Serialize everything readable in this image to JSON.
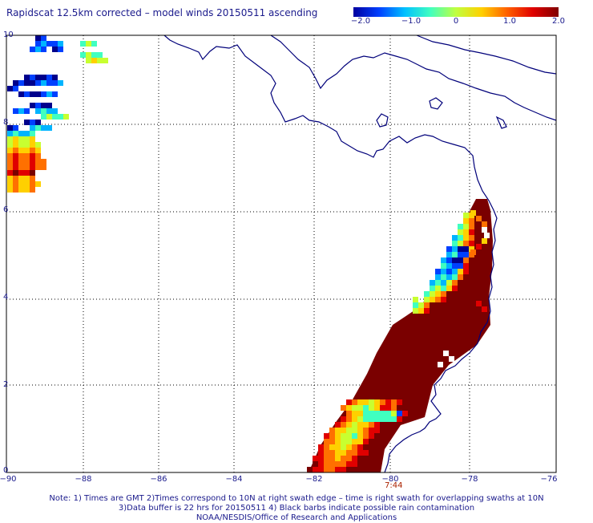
{
  "title": "Rapidscat 12.5km corrected – model winds 20150511 ascending",
  "colorbar": {
    "tick_labels": [
      "−2.0",
      "−1.0",
      "0",
      "1.0",
      "2.0"
    ],
    "colors": [
      "#0000a0",
      "#0040ff",
      "#00c0ff",
      "#40ffc0",
      "#c0ff40",
      "#ffd000",
      "#ff6000",
      "#e00000",
      "#800000"
    ]
  },
  "axes": {
    "lon_labels": [
      "−90",
      "−88",
      "−86",
      "−84",
      "−82",
      "−80",
      "−78",
      "−76"
    ],
    "lat_labels": [
      "10",
      "8",
      "6",
      "4",
      "2",
      "0"
    ],
    "lon_range": [
      -90,
      -75.4
    ],
    "lat_range": [
      0,
      10.4
    ],
    "grid": "dotted"
  },
  "swath_time": "7:44",
  "note": {
    "line1": "Note: 1) Times are GMT 2)Times correspond to 10N at right swath edge – time is right swath for overlapping swaths at 10N",
    "line2": "3)Data buffer is 22 hrs for 20150511 4) Black barbs indicate possible rain contamination",
    "line3": "NOAA/NESDIS/Office of Research and Applications"
  },
  "colors": {
    "text": "#1a1a8c",
    "coastline": "#00007a",
    "grid": "#000000",
    "time_label": "#aa2200"
  }
}
